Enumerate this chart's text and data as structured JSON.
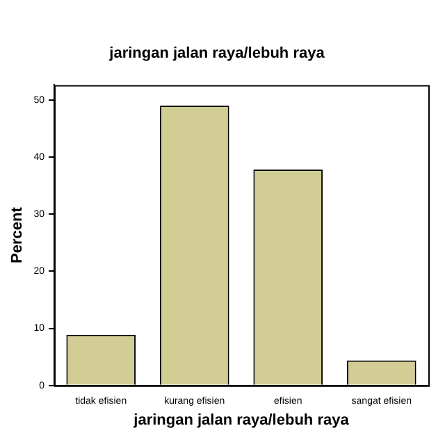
{
  "chart_data": {
    "type": "bar",
    "title": "jaringan jalan raya/lebuh raya",
    "xlabel": "jaringan jalan raya/lebuh raya",
    "ylabel": "Percent",
    "categories": [
      "tidak efisien",
      "kurang efisien",
      "efisien",
      "sangat efisien"
    ],
    "values": [
      8.9,
      49.0,
      37.8,
      4.4
    ],
    "color": "#d2cc95",
    "ylim": [
      0,
      52.6
    ],
    "yticks": [
      0,
      10,
      20,
      30,
      40,
      50
    ],
    "grid": false,
    "legend": false
  }
}
